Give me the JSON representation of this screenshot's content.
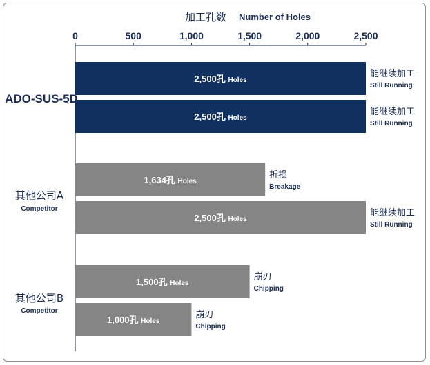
{
  "chart_data": {
    "type": "bar",
    "orientation": "horizontal",
    "title_cn": "加工孔数",
    "title_en": "Number of Holes",
    "xlim": [
      0,
      2500
    ],
    "ticks": [
      "0",
      "500",
      "1,000",
      "1,500",
      "2,000",
      "2,500"
    ],
    "tick_values": [
      0,
      500,
      1000,
      1500,
      2000,
      2500
    ],
    "colors": {
      "ours": "#10305f",
      "competitor": "#858585",
      "text": "#1b2d52"
    },
    "groups": [
      {
        "label": "ADO-SUS-5D",
        "label_cn": "",
        "sublabel": "",
        "bars": [
          {
            "value": 2500,
            "text_num": "2,500孔",
            "text_unit": "Holes",
            "status_cn": "能继续加工",
            "status_en": "Still Running",
            "series": "ours"
          },
          {
            "value": 2500,
            "text_num": "2,500孔",
            "text_unit": "Holes",
            "status_cn": "能继续加工",
            "status_en": "Still Running",
            "series": "ours"
          }
        ]
      },
      {
        "label": "",
        "label_cn": "其他公司A",
        "sublabel": "Competitor",
        "bars": [
          {
            "value": 1634,
            "text_num": "1,634孔",
            "text_unit": "Holes",
            "status_cn": "折损",
            "status_en": "Breakage",
            "series": "competitor"
          },
          {
            "value": 2500,
            "text_num": "2,500孔",
            "text_unit": "Holes",
            "status_cn": "能继续加工",
            "status_en": "Still Running",
            "series": "competitor"
          }
        ]
      },
      {
        "label": "",
        "label_cn": "其他公司B",
        "sublabel": "Competitor",
        "bars": [
          {
            "value": 1500,
            "text_num": "1,500孔",
            "text_unit": "Holes",
            "status_cn": "崩刃",
            "status_en": "Chipping",
            "series": "competitor"
          },
          {
            "value": 1000,
            "text_num": "1,000孔",
            "text_unit": "Holes",
            "status_cn": "崩刃",
            "status_en": "Chipping",
            "series": "competitor"
          }
        ]
      }
    ]
  }
}
